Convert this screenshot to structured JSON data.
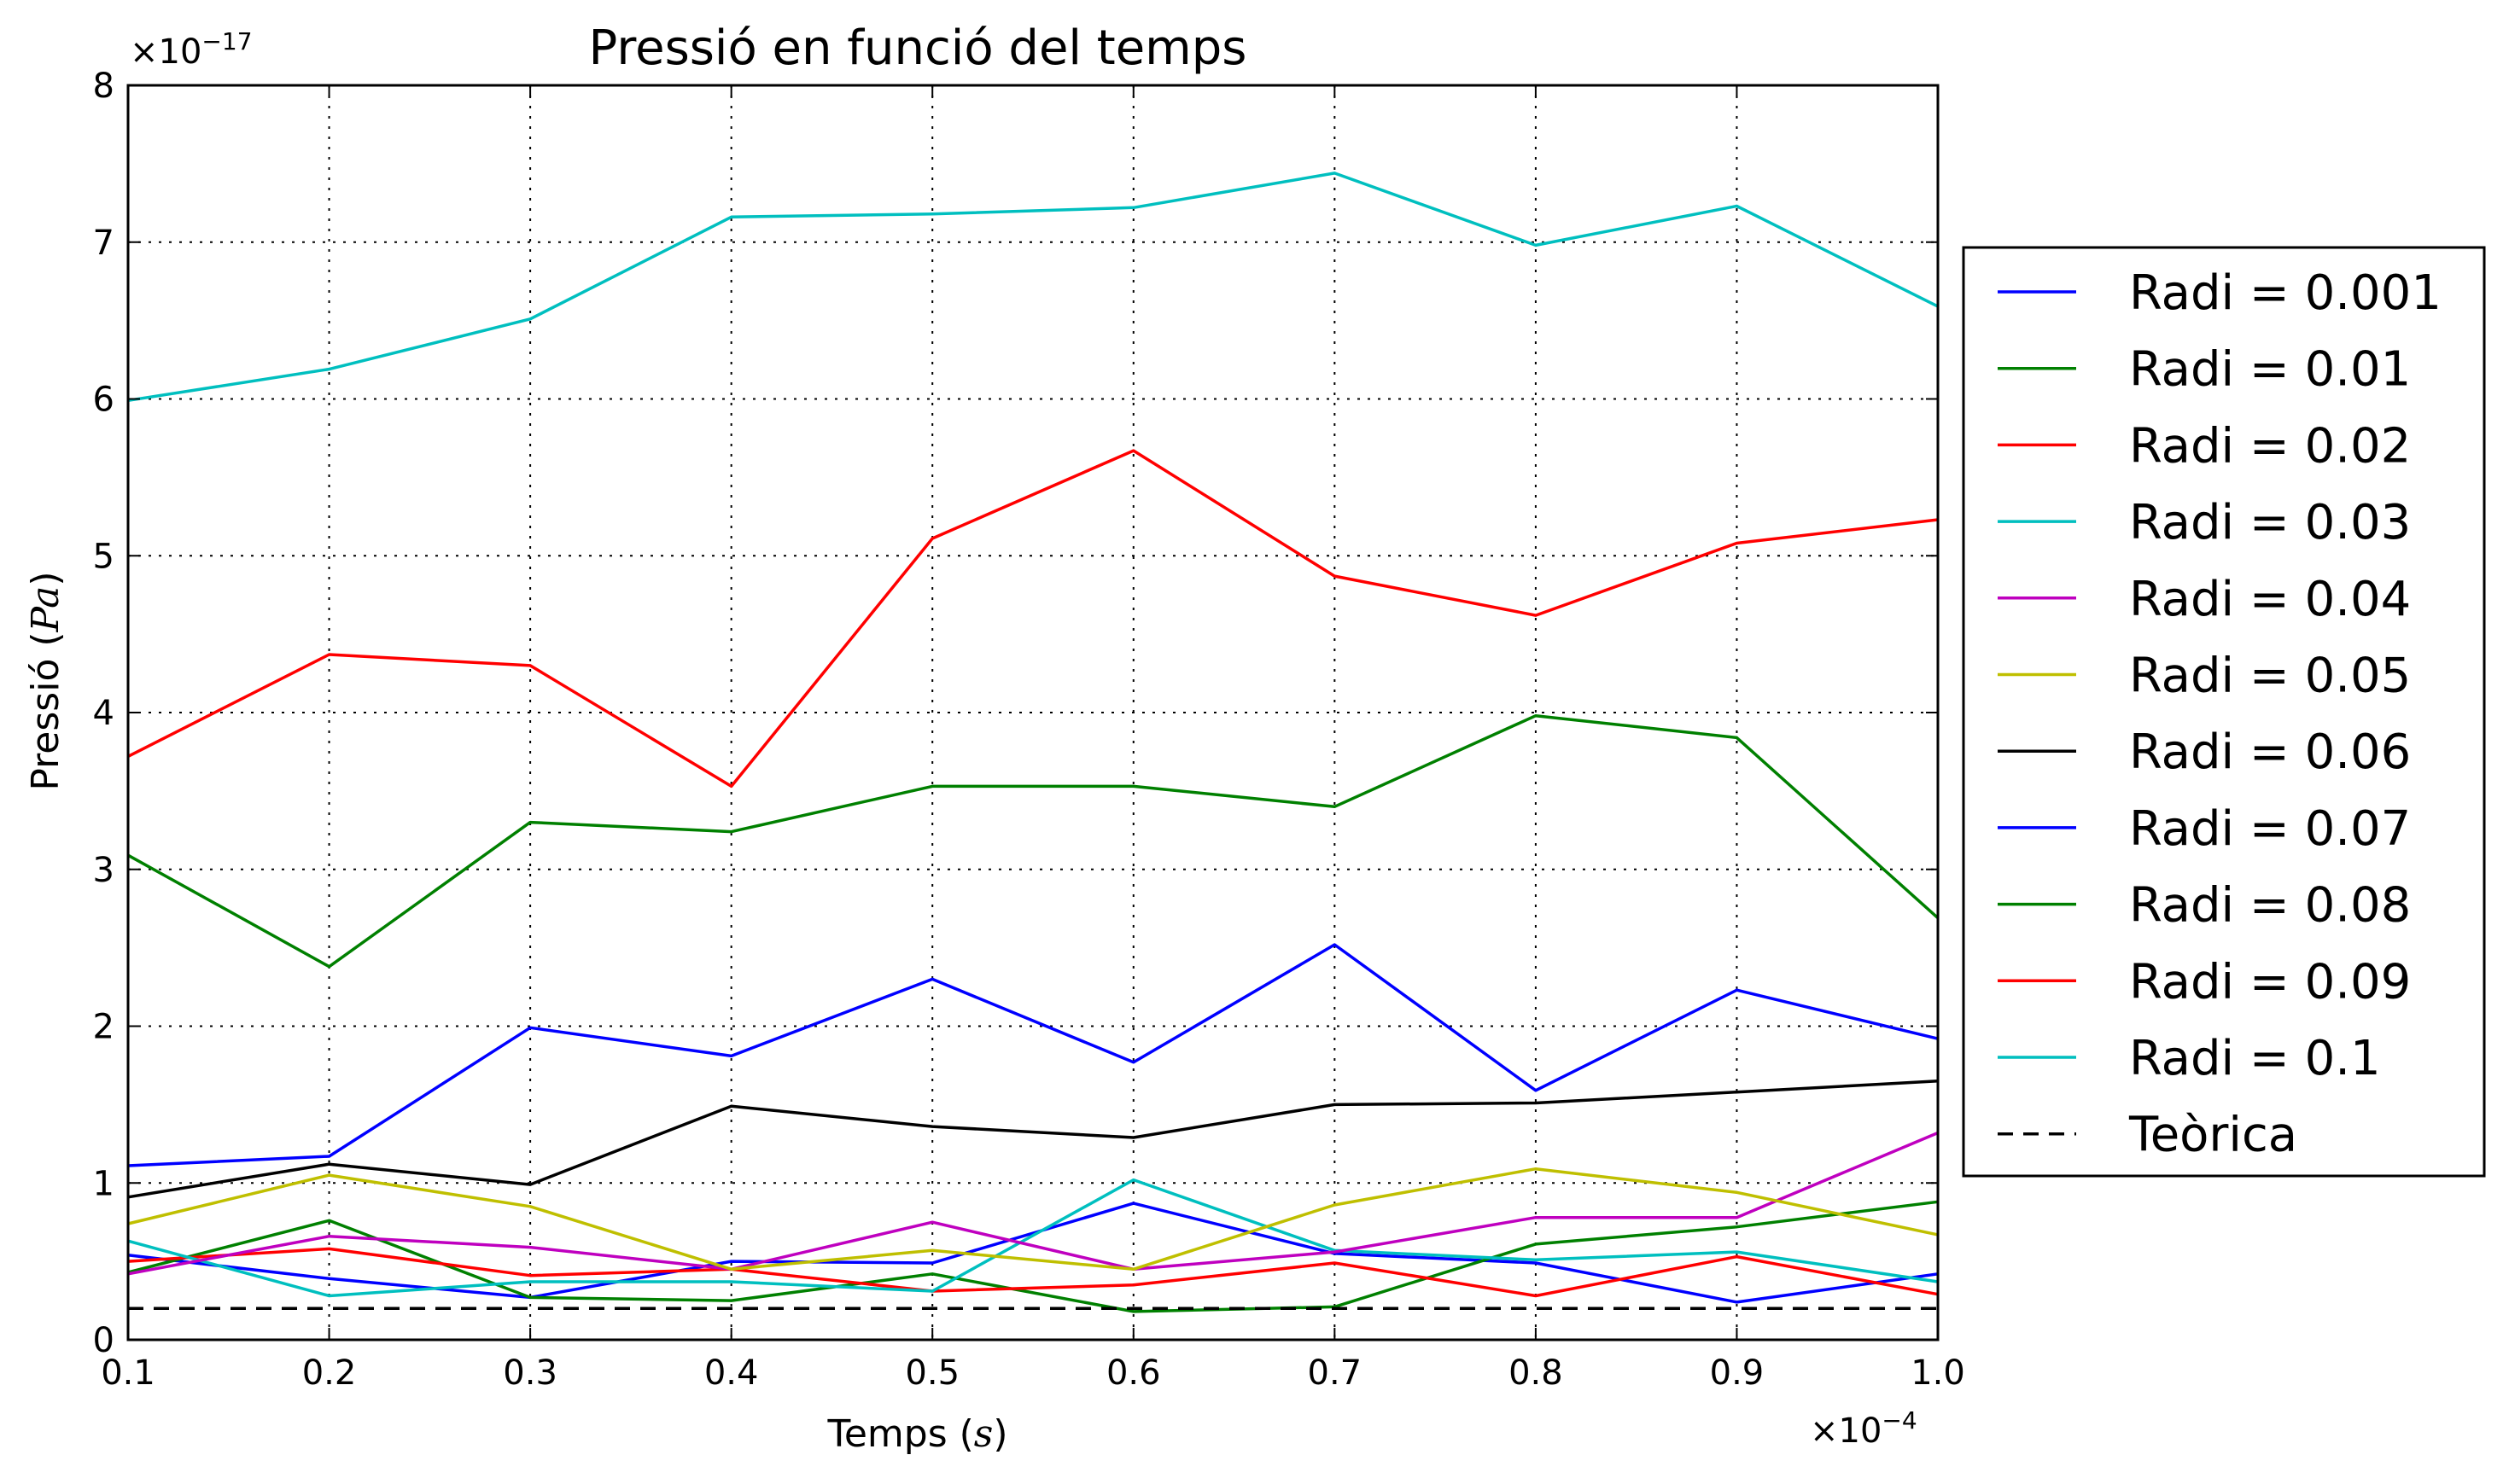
{
  "chart_data": {
    "type": "line",
    "title": "Pressió en funció del temps",
    "xlabel": {
      "prefix": "Temps (",
      "math": "s",
      "suffix": ")"
    },
    "ylabel": {
      "prefix": "Pressió (",
      "math": "Pa",
      "suffix": ")"
    },
    "x_multiplier": {
      "prefix": "×10",
      "exp": "−4"
    },
    "y_multiplier": {
      "prefix": "×10",
      "exp": "−17"
    },
    "xlim": [
      0.1,
      1.0
    ],
    "ylim": [
      0,
      8
    ],
    "x_ticks": [
      "0.1",
      "0.2",
      "0.3",
      "0.4",
      "0.5",
      "0.6",
      "0.7",
      "0.8",
      "0.9",
      "1.0"
    ],
    "y_ticks": [
      "0",
      "1",
      "2",
      "3",
      "4",
      "5",
      "6",
      "7",
      "8"
    ],
    "grid": true,
    "legend_position": "right",
    "x": [
      0.1,
      0.2,
      0.3,
      0.4,
      0.5,
      0.6,
      0.7,
      0.8,
      0.9,
      1.0
    ],
    "series": [
      {
        "name": "Radi = 0.001",
        "color": "#0000ff",
        "values": [
          0.54,
          0.39,
          0.27,
          0.5,
          0.49,
          0.87,
          0.55,
          0.49,
          0.24,
          0.42
        ]
      },
      {
        "name": "Radi = 0.01",
        "color": "#008000",
        "values": [
          0.43,
          0.76,
          0.27,
          0.25,
          0.42,
          0.18,
          0.21,
          0.61,
          0.72,
          0.88
        ]
      },
      {
        "name": "Radi = 0.02",
        "color": "#ff0000",
        "values": [
          0.5,
          0.58,
          0.41,
          0.45,
          0.31,
          0.35,
          0.49,
          0.28,
          0.53,
          0.29
        ]
      },
      {
        "name": "Radi = 0.03",
        "color": "#00bfbf",
        "values": [
          0.63,
          0.28,
          0.37,
          0.37,
          0.31,
          1.02,
          0.57,
          0.51,
          0.56,
          0.37
        ]
      },
      {
        "name": "Radi = 0.04",
        "color": "#bf00bf",
        "values": [
          0.42,
          0.66,
          0.59,
          0.45,
          0.75,
          0.45,
          0.56,
          0.78,
          0.78,
          1.32
        ]
      },
      {
        "name": "Radi = 0.05",
        "color": "#bfbf00",
        "values": [
          0.74,
          1.05,
          0.85,
          0.45,
          0.57,
          0.45,
          0.86,
          1.09,
          0.94,
          0.67
        ]
      },
      {
        "name": "Radi = 0.06",
        "color": "#000000",
        "values": [
          0.91,
          1.12,
          0.99,
          1.49,
          1.36,
          1.29,
          1.5,
          1.51,
          1.58,
          1.65
        ]
      },
      {
        "name": "Radi = 0.07",
        "color": "#0000ff",
        "values": [
          1.11,
          1.17,
          1.99,
          1.81,
          2.3,
          1.77,
          2.52,
          1.59,
          2.23,
          1.92
        ]
      },
      {
        "name": "Radi = 0.08",
        "color": "#008000",
        "values": [
          3.09,
          2.38,
          3.3,
          3.24,
          3.53,
          3.53,
          3.4,
          3.98,
          3.84,
          2.69
        ]
      },
      {
        "name": "Radi = 0.09",
        "color": "#ff0000",
        "values": [
          3.72,
          4.37,
          4.3,
          3.53,
          5.11,
          5.67,
          4.87,
          4.62,
          5.08,
          5.23
        ]
      },
      {
        "name": "Radi = 0.1",
        "color": "#00bfbf",
        "values": [
          5.99,
          6.19,
          6.51,
          7.16,
          7.18,
          7.22,
          7.44,
          6.98,
          7.23,
          6.59
        ]
      }
    ],
    "reference_line": {
      "name": "Teòrica",
      "color": "#000000",
      "value": 0.2,
      "style": "dashed"
    }
  }
}
